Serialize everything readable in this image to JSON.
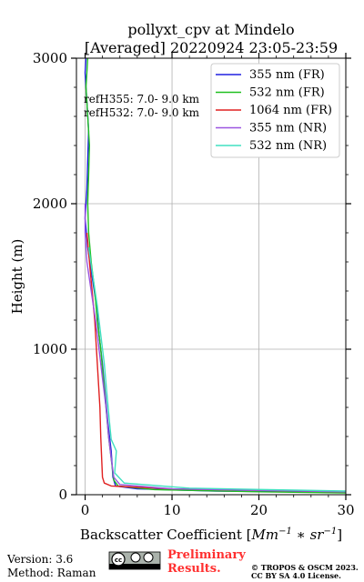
{
  "chart_data": {
    "type": "line",
    "title_line1": "pollyxt_cpv at Mindelo",
    "title_line2": "[Averaged] 20220924 23:05-23:59",
    "ylabel": "Height (m)",
    "xlabel_text": "Backscatter Coefficient [",
    "xlabel_unit_a": "Mm",
    "xlabel_unit_a_sup": "−1",
    "xlabel_unit_b": " ∗ sr",
    "xlabel_unit_b_sup": "−1",
    "xlabel_close": "]",
    "xlim": [
      -1,
      30
    ],
    "ylim": [
      0,
      3000
    ],
    "x_ticks": [
      0,
      10,
      20,
      30
    ],
    "y_ticks": [
      0,
      1000,
      2000,
      3000
    ],
    "grid": true,
    "legend_position": "top-right",
    "annotations": [
      "refH355:  7.0- 9.0 km",
      "refH532:  7.0- 9.0 km"
    ],
    "series": [
      {
        "name": "355 nm (FR)",
        "color": "#2020e0",
        "points": [
          [
            0.1,
            3000
          ],
          [
            0.0,
            2900
          ],
          [
            0.2,
            2700
          ],
          [
            0.4,
            2500
          ],
          [
            0.3,
            2300
          ],
          [
            0.2,
            2100
          ],
          [
            0.0,
            1900
          ],
          [
            0.3,
            1700
          ],
          [
            0.8,
            1500
          ],
          [
            1.3,
            1300
          ],
          [
            1.6,
            1100
          ],
          [
            2.0,
            900
          ],
          [
            2.3,
            700
          ],
          [
            2.6,
            500
          ],
          [
            3.0,
            300
          ],
          [
            3.2,
            120
          ],
          [
            3.5,
            60
          ],
          [
            6,
            40
          ],
          [
            15,
            25
          ],
          [
            30,
            15
          ]
        ]
      },
      {
        "name": "532 nm (FR)",
        "color": "#20c020",
        "points": [
          [
            0.3,
            3000
          ],
          [
            0.1,
            2800
          ],
          [
            0.3,
            2600
          ],
          [
            0.5,
            2400
          ],
          [
            0.4,
            2200
          ],
          [
            0.3,
            2000
          ],
          [
            0.4,
            1800
          ],
          [
            0.7,
            1600
          ],
          [
            1.1,
            1400
          ],
          [
            1.4,
            1200
          ],
          [
            1.8,
            1000
          ],
          [
            2.1,
            800
          ],
          [
            2.4,
            600
          ],
          [
            2.7,
            400
          ],
          [
            3.1,
            200
          ],
          [
            3.3,
            100
          ],
          [
            3.8,
            60
          ],
          [
            8,
            35
          ],
          [
            20,
            20
          ],
          [
            30,
            12
          ]
        ]
      },
      {
        "name": "1064 nm (FR)",
        "color": "#e02020",
        "points": [
          [
            0.2,
            1800
          ],
          [
            0.5,
            1600
          ],
          [
            0.8,
            1400
          ],
          [
            1.1,
            1200
          ],
          [
            1.3,
            1000
          ],
          [
            1.5,
            800
          ],
          [
            1.7,
            600
          ],
          [
            1.8,
            400
          ],
          [
            1.9,
            250
          ],
          [
            2.0,
            120
          ],
          [
            2.2,
            80
          ],
          [
            3.0,
            60
          ],
          [
            10,
            40
          ],
          [
            30,
            20
          ]
        ]
      },
      {
        "name": "355 nm (NR)",
        "color": "#9b55e0",
        "points": [
          [
            0.0,
            2000
          ],
          [
            0.0,
            1800
          ],
          [
            0.2,
            1600
          ],
          [
            0.7,
            1400
          ],
          [
            1.2,
            1200
          ],
          [
            1.6,
            1000
          ],
          [
            2.0,
            800
          ],
          [
            2.4,
            600
          ],
          [
            2.7,
            400
          ],
          [
            3.0,
            250
          ],
          [
            3.3,
            120
          ],
          [
            4,
            70
          ],
          [
            10,
            40
          ],
          [
            30,
            20
          ]
        ]
      },
      {
        "name": "532 nm (NR)",
        "color": "#40e0c0",
        "points": [
          [
            0.4,
            1700
          ],
          [
            0.9,
            1500
          ],
          [
            1.4,
            1300
          ],
          [
            1.8,
            1100
          ],
          [
            2.2,
            900
          ],
          [
            2.5,
            700
          ],
          [
            2.8,
            500
          ],
          [
            3.0,
            380
          ],
          [
            3.6,
            300
          ],
          [
            3.4,
            150
          ],
          [
            4.5,
            80
          ],
          [
            12,
            45
          ],
          [
            30,
            25
          ]
        ]
      }
    ]
  },
  "footer": {
    "version": "Version: 3.6",
    "method": "Method: Raman",
    "preliminary_line1": "Preliminary",
    "preliminary_line2": "Results.",
    "copyright_line1": "© TROPOS & OSCM 2023.",
    "copyright_line2": "CC BY SA 4.0 License."
  }
}
